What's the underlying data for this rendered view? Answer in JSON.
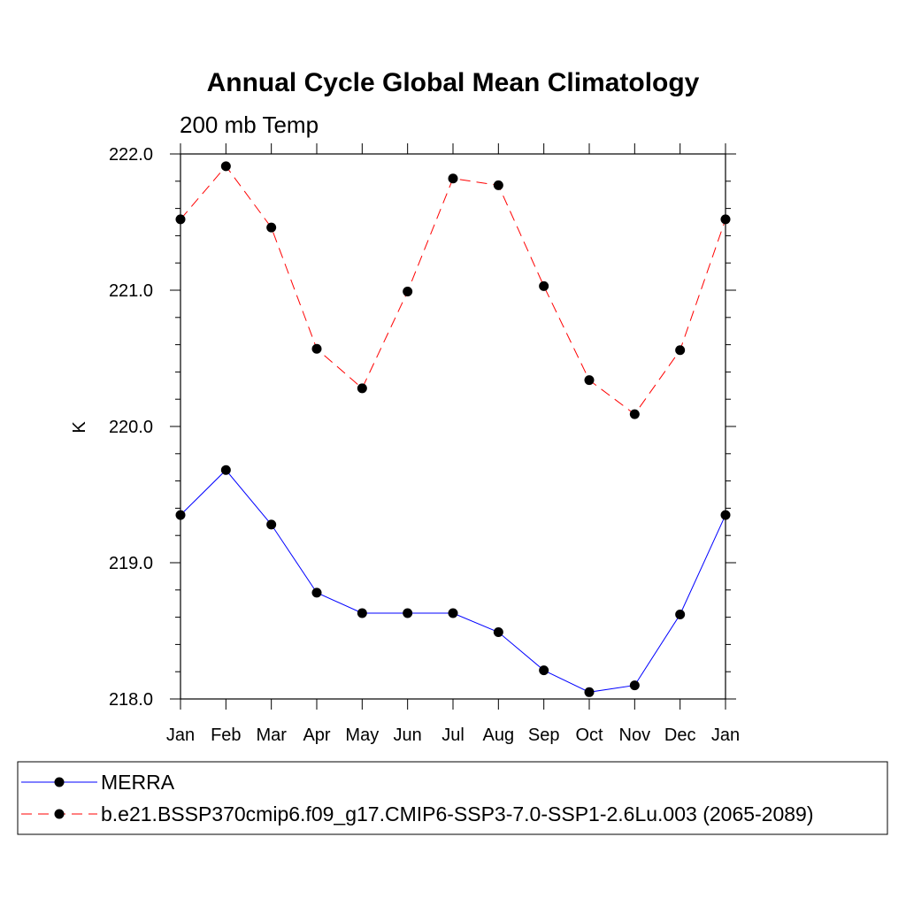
{
  "chart_data": {
    "type": "line",
    "title": "Annual Cycle Global Mean Climatology",
    "subtitle": "200 mb Temp",
    "xlabel": "",
    "ylabel": "K",
    "categories": [
      "Jan",
      "Feb",
      "Mar",
      "Apr",
      "May",
      "Jun",
      "Jul",
      "Aug",
      "Sep",
      "Oct",
      "Nov",
      "Dec",
      "Jan"
    ],
    "ylim": [
      218.0,
      222.0
    ],
    "y_ticks": [
      "218.0",
      "219.0",
      "220.0",
      "221.0",
      "222.0"
    ],
    "y_minor_step": 0.2,
    "grid": false,
    "legend_position": "bottom",
    "series": [
      {
        "name": "MERRA",
        "color": "#0000ff",
        "line_style": "solid",
        "marker": "filled-circle",
        "values": [
          219.35,
          219.68,
          219.28,
          218.78,
          218.63,
          218.63,
          218.63,
          218.49,
          218.21,
          218.05,
          218.1,
          218.62,
          219.35
        ]
      },
      {
        "name": "b.e21.BSSP370cmip6.f09_g17.CMIP6-SSP3-7.0-SSP1-2.6Lu.003 (2065-2089)",
        "color": "#ff0000",
        "line_style": "dashed",
        "marker": "filled-circle",
        "values": [
          221.52,
          221.91,
          221.46,
          220.57,
          220.28,
          220.99,
          221.82,
          221.77,
          221.03,
          220.34,
          220.09,
          220.56,
          221.52
        ]
      }
    ]
  }
}
